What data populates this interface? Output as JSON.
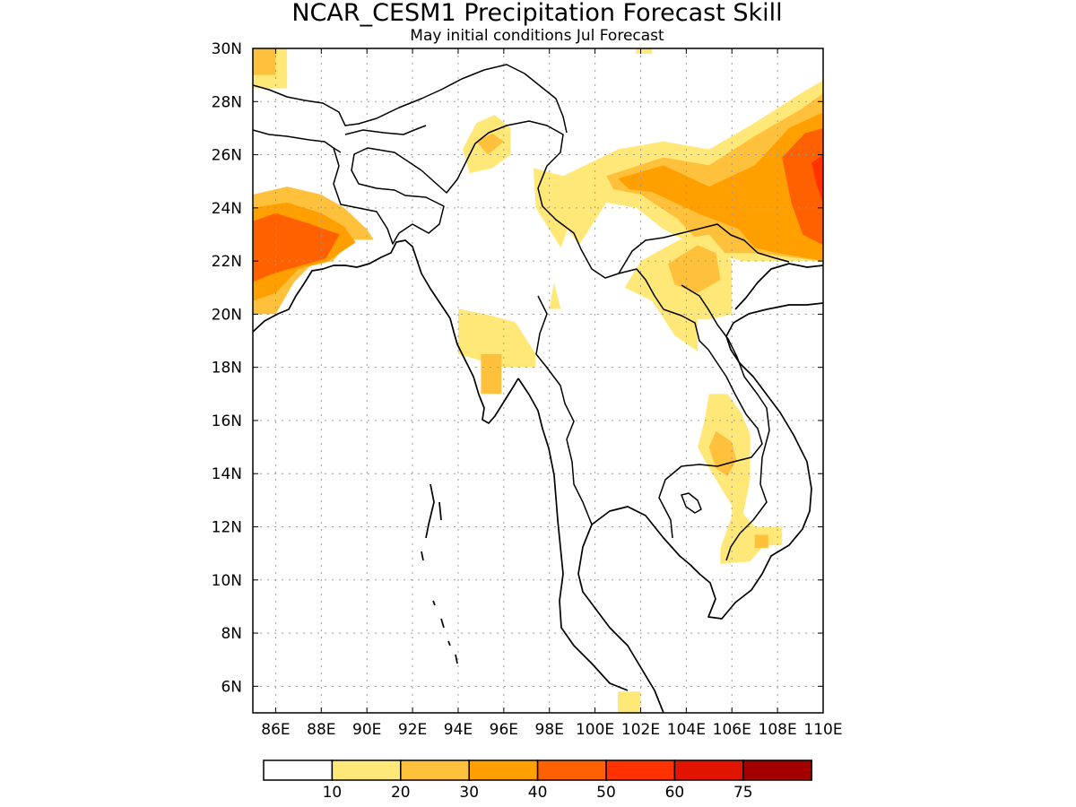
{
  "title": "NCAR_CESM1 Precipitation Forecast Skill",
  "subtitle": "May initial conditions  Jul Forecast",
  "map": {
    "lon_range": [
      85,
      110
    ],
    "lat_range": [
      5,
      30
    ],
    "x_tick_labels": [
      "86E",
      "88E",
      "90E",
      "92E",
      "94E",
      "96E",
      "98E",
      "100E",
      "102E",
      "104E",
      "106E",
      "108E",
      "110E"
    ],
    "y_tick_labels": [
      "6N",
      "8N",
      "10N",
      "12N",
      "14N",
      "16N",
      "18N",
      "20N",
      "22N",
      "24N",
      "26N",
      "28N",
      "30N"
    ],
    "grid": "dotted"
  },
  "colorbar": {
    "colors": [
      "#ffffff",
      "#ffe878",
      "#ffc03c",
      "#ffa000",
      "#ff6000",
      "#ff3200",
      "#e11400",
      "#a50000"
    ],
    "labels": [
      "10",
      "20",
      "30",
      "40",
      "50",
      "60",
      "75"
    ]
  },
  "skill_regions": [
    {
      "level": 1,
      "name": "northwest-corner",
      "pts": [
        [
          85,
          28.5
        ],
        [
          86.5,
          28.5
        ],
        [
          86.5,
          30
        ],
        [
          85,
          30
        ]
      ]
    },
    {
      "level": 2,
      "name": "northwest-corner-core",
      "pts": [
        [
          85,
          29
        ],
        [
          86,
          29
        ],
        [
          86,
          30
        ],
        [
          85,
          30
        ]
      ]
    },
    {
      "level": 1,
      "name": "north-top-strip",
      "pts": [
        [
          101.8,
          29.8
        ],
        [
          102.5,
          29.8
        ],
        [
          102.5,
          30
        ],
        [
          101.8,
          30
        ]
      ]
    },
    {
      "level": 2,
      "name": "west-bengal",
      "pts": [
        [
          85,
          24.5
        ],
        [
          86.5,
          24.8
        ],
        [
          88,
          24.5
        ],
        [
          89,
          24
        ],
        [
          90,
          23.2
        ],
        [
          90.3,
          22.8
        ],
        [
          89.3,
          22.8
        ],
        [
          88.5,
          22
        ],
        [
          87.5,
          21.8
        ],
        [
          86.8,
          21.2
        ],
        [
          86,
          20
        ],
        [
          85,
          20
        ]
      ]
    },
    {
      "level": 3,
      "name": "west-bengal-l3",
      "pts": [
        [
          85,
          24
        ],
        [
          86.5,
          24.2
        ],
        [
          88,
          23.8
        ],
        [
          89,
          23.3
        ],
        [
          89.5,
          22.7
        ],
        [
          88.3,
          22
        ],
        [
          87,
          21.7
        ],
        [
          86,
          20.8
        ],
        [
          85,
          20.5
        ]
      ]
    },
    {
      "level": 4,
      "name": "west-bengal-l4",
      "pts": [
        [
          85,
          23.5
        ],
        [
          86,
          23.8
        ],
        [
          87.5,
          23.4
        ],
        [
          88.8,
          23
        ],
        [
          88.2,
          22.1
        ],
        [
          87,
          21.8
        ],
        [
          85.8,
          21.5
        ],
        [
          85,
          21.2
        ]
      ]
    },
    {
      "level": 1,
      "name": "assam-patch",
      "pts": [
        [
          94.2,
          26.2
        ],
        [
          94.8,
          27.2
        ],
        [
          95.6,
          27.5
        ],
        [
          96.3,
          27
        ],
        [
          96.3,
          26
        ],
        [
          95.5,
          25.5
        ],
        [
          94.5,
          25.3
        ]
      ]
    },
    {
      "level": 2,
      "name": "assam-patch-core",
      "pts": [
        [
          94.8,
          26.5
        ],
        [
          95.5,
          26.8
        ],
        [
          96,
          26.5
        ],
        [
          95.3,
          26
        ]
      ]
    },
    {
      "level": 1,
      "name": "south-china-band",
      "pts": [
        [
          97.3,
          25.5
        ],
        [
          98.6,
          25.2
        ],
        [
          101,
          26.2
        ],
        [
          103,
          26.5
        ],
        [
          105,
          26.2
        ],
        [
          107,
          27.2
        ],
        [
          109,
          28.3
        ],
        [
          110,
          28.8
        ],
        [
          110,
          22
        ],
        [
          106.5,
          22
        ],
        [
          105,
          22.3
        ],
        [
          103,
          23.2
        ],
        [
          101.8,
          24
        ],
        [
          100.5,
          24.2
        ],
        [
          99.3,
          22.6
        ],
        [
          98.8,
          23.2
        ],
        [
          98.5,
          22.5
        ],
        [
          97.4,
          24
        ]
      ]
    },
    {
      "level": 2,
      "name": "south-china-l2",
      "pts": [
        [
          100.5,
          25.2
        ],
        [
          103,
          25.9
        ],
        [
          105,
          25.6
        ],
        [
          107,
          26.7
        ],
        [
          109,
          27.7
        ],
        [
          110,
          28.3
        ],
        [
          110,
          22
        ],
        [
          107,
          22.3
        ],
        [
          105,
          22.3
        ],
        [
          103.6,
          23.6
        ],
        [
          102,
          24.5
        ],
        [
          100.8,
          24.7
        ]
      ]
    },
    {
      "level": 3,
      "name": "south-china-l3",
      "pts": [
        [
          101,
          25.1
        ],
        [
          103,
          25.6
        ],
        [
          105,
          24.8
        ],
        [
          107,
          25.6
        ],
        [
          108.5,
          27
        ],
        [
          110,
          27.6
        ],
        [
          110,
          22
        ],
        [
          108,
          22.3
        ],
        [
          107,
          22.5
        ],
        [
          106.3,
          23.2
        ],
        [
          104.5,
          23.8
        ],
        [
          102.5,
          24.6
        ],
        [
          101.5,
          24.7
        ]
      ]
    },
    {
      "level": 4,
      "name": "south-china-l4",
      "pts": [
        [
          108.2,
          25.9
        ],
        [
          109.2,
          26.8
        ],
        [
          110,
          27
        ],
        [
          110,
          22.6
        ],
        [
          109.1,
          23
        ],
        [
          108.6,
          24.2
        ]
      ]
    },
    {
      "level": 5,
      "name": "south-china-l5",
      "pts": [
        [
          109.5,
          25.7
        ],
        [
          110,
          26
        ],
        [
          110,
          24.2
        ],
        [
          109.7,
          24.9
        ]
      ]
    },
    {
      "level": 1,
      "name": "north-laos-patch",
      "pts": [
        [
          102,
          22
        ],
        [
          103.7,
          22.8
        ],
        [
          105,
          23
        ],
        [
          106,
          22
        ],
        [
          106,
          20
        ],
        [
          105,
          19.8
        ],
        [
          104.5,
          19.8
        ],
        [
          104.5,
          18.6
        ],
        [
          103.5,
          19.2
        ],
        [
          102.5,
          20.5
        ],
        [
          101.3,
          21
        ]
      ]
    },
    {
      "level": 2,
      "name": "north-laos-core",
      "pts": [
        [
          103.2,
          21.9
        ],
        [
          104.5,
          22.6
        ],
        [
          105.3,
          22.3
        ],
        [
          105.5,
          21.3
        ],
        [
          104.5,
          20.8
        ],
        [
          103.5,
          21.1
        ]
      ]
    },
    {
      "level": 1,
      "name": "arakan-patch",
      "pts": [
        [
          94,
          20.2
        ],
        [
          95.2,
          20
        ],
        [
          96.5,
          19.7
        ],
        [
          97.4,
          18.5
        ],
        [
          97.4,
          18
        ],
        [
          96,
          18
        ],
        [
          94,
          18.5
        ]
      ]
    },
    {
      "level": 2,
      "name": "arakan-core",
      "pts": [
        [
          95,
          18.5
        ],
        [
          95.9,
          18.5
        ],
        [
          95.9,
          17
        ],
        [
          95,
          17
        ]
      ]
    },
    {
      "level": 1,
      "name": "shan-tip",
      "pts": [
        [
          98.2,
          21.2
        ],
        [
          98.5,
          20.2
        ],
        [
          98,
          20.2
        ]
      ]
    },
    {
      "level": 1,
      "name": "mekong-strip",
      "pts": [
        [
          105,
          17
        ],
        [
          105.8,
          17
        ],
        [
          106.4,
          16.3
        ],
        [
          106.8,
          15.5
        ],
        [
          106.8,
          13.8
        ],
        [
          106.5,
          12.5
        ],
        [
          107,
          12
        ],
        [
          108.2,
          12
        ],
        [
          108.2,
          11.3
        ],
        [
          107.4,
          11.3
        ],
        [
          106.8,
          10.7
        ],
        [
          105.5,
          10.6
        ],
        [
          105.5,
          11.2
        ],
        [
          106,
          12.4
        ],
        [
          106,
          12.8
        ],
        [
          105,
          14.2
        ],
        [
          104.5,
          15
        ],
        [
          104.8,
          16
        ]
      ]
    },
    {
      "level": 2,
      "name": "mekong-core",
      "pts": [
        [
          105.3,
          15.6
        ],
        [
          106,
          15.2
        ],
        [
          106.2,
          14.5
        ],
        [
          105.8,
          13.9
        ],
        [
          105.3,
          14.2
        ],
        [
          105,
          15
        ]
      ]
    },
    {
      "level": 2,
      "name": "mekong-south",
      "pts": [
        [
          107,
          11.7
        ],
        [
          107.6,
          11.7
        ],
        [
          107.6,
          11.2
        ],
        [
          107,
          11.2
        ]
      ]
    },
    {
      "level": 1,
      "name": "south-tip",
      "pts": [
        [
          101,
          5
        ],
        [
          102,
          5
        ],
        [
          102,
          5.8
        ],
        [
          101,
          5.8
        ]
      ]
    }
  ]
}
